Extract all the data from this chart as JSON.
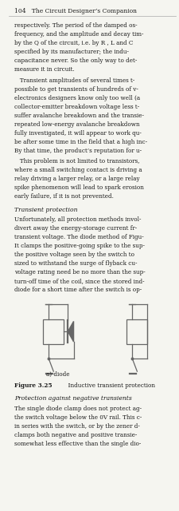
{
  "page_number": "104",
  "header_title": "The Circuit Designer’s Companion",
  "background_color": "#f5f5f0",
  "text_color": "#1a1a1a",
  "section_heading": "Transient protection",
  "diagram_caption": "a) diode",
  "figure_label": "Figure 3.25",
  "figure_caption": "  Inductive transient protection",
  "section2_heading": "Protection against negative transients",
  "p1_lines": [
    "respectively. The period of the damped os-",
    "frequency, and the amplitude and decay tim-",
    "by the Q of the circuit, i.e. by R , L and C",
    "specified by its manufacturer; the indu-",
    "capacitance never. So the only way to det-",
    "measure it in circuit."
  ],
  "p2_lines": [
    "   Transient amplitudes of several times t-",
    "possible to get transients of hundreds of v-",
    "electronics designers know only too well (a",
    "collector-emitter breakdown voltage less t-",
    "suffer avalanche breakdown and the transie-",
    "repeated low-energy avalanche breakdown",
    "fully investigated, it will appear to work qu-",
    "be after some time in the field that a high inc-",
    "By that time, the product’s reputation for u-"
  ],
  "p3_lines": [
    "   This problem is not limited to transistors,",
    "where a small switching contact is driving a",
    "relay driving a larger relay, or a large relay",
    "spike phenomenon will lead to spark erosion",
    "early failure, if it is not prevented."
  ],
  "sp_lines": [
    "Unfortunately, all protection methods invol-",
    "divert away the energy-storage current fr-",
    "transient voltage. The diode method of Figu-",
    "It clamps the positive-going spike to the sup-",
    "the positive voltage seen by the switch to",
    "sized to withstand the surge of flyback cu-",
    "voltage rating need be no more than the sup-",
    "turn-off time of the coil, since the stored ind-",
    "diode for a short time after the switch is op-"
  ],
  "s2_lines": [
    "The single diode clamp does not protect ag-",
    "the switch voltage below the 0V rail. This c-",
    "in series with the switch, or by the zener d-",
    "clamps both negative and positive transie-",
    "somewhat less effective than the single dio-"
  ]
}
